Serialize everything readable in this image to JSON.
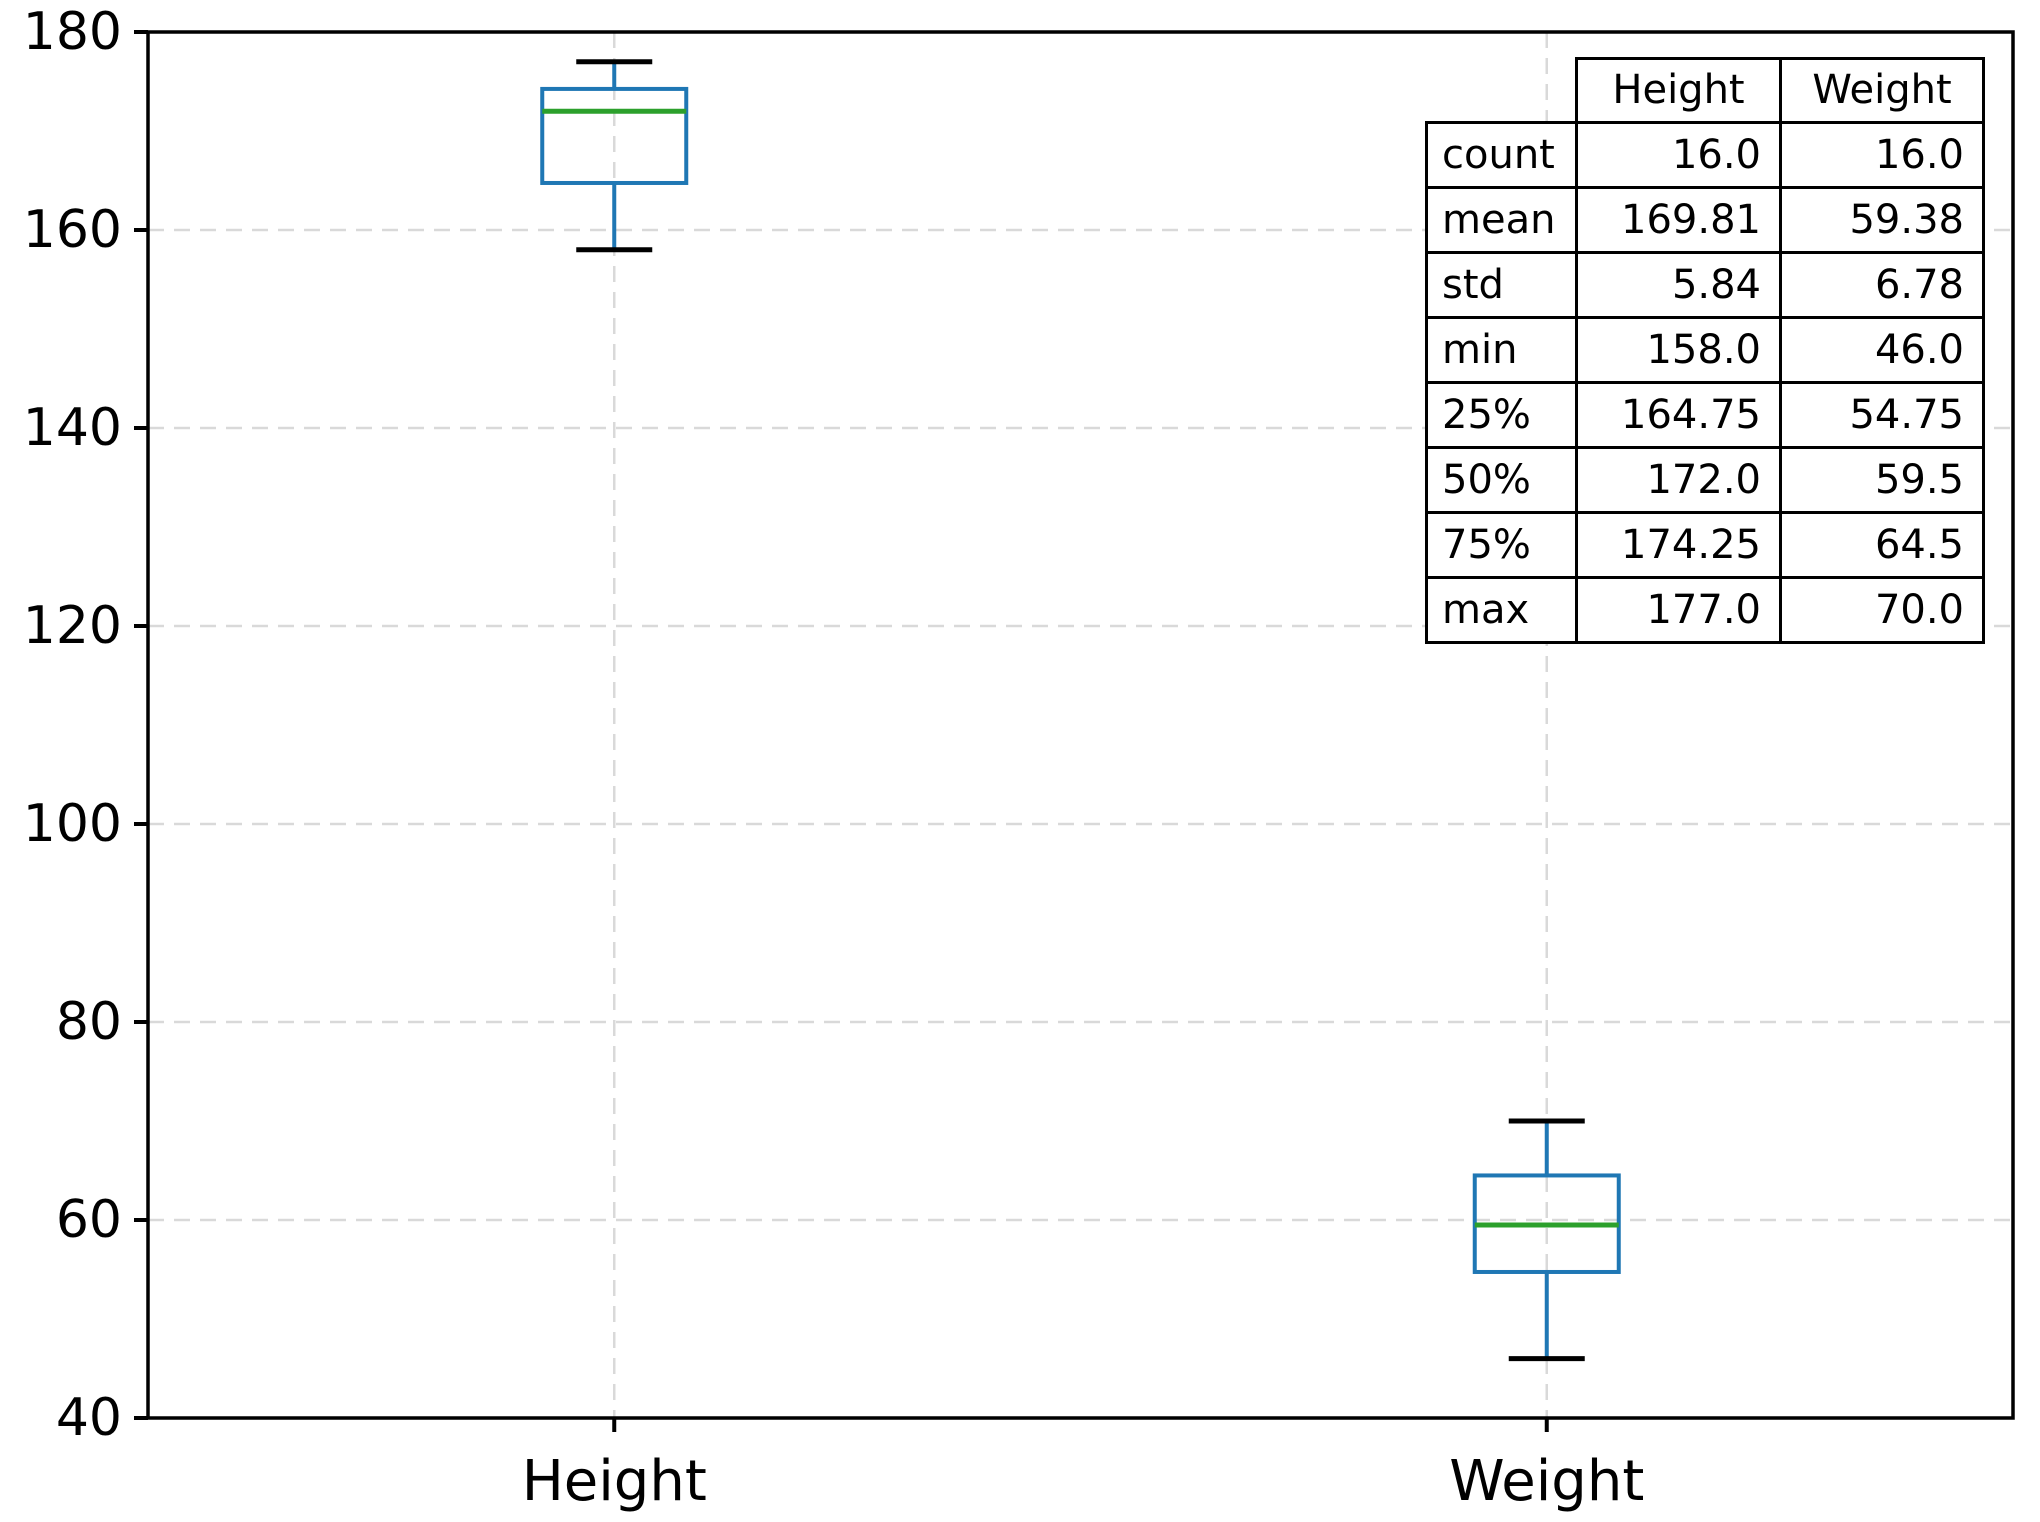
{
  "chart_data": {
    "type": "boxplot",
    "title": "",
    "xlabel": "",
    "ylabel": "",
    "categories": [
      "Height",
      "Weight"
    ],
    "series": [
      {
        "name": "Height",
        "min": 158.0,
        "q1": 164.75,
        "median": 172.0,
        "q3": 174.25,
        "max": 177.0
      },
      {
        "name": "Weight",
        "min": 46.0,
        "q1": 54.75,
        "median": 59.5,
        "q3": 64.5,
        "max": 70.0
      }
    ],
    "ylim": [
      40,
      180
    ],
    "yticks": [
      40,
      60,
      80,
      100,
      120,
      140,
      160,
      180
    ],
    "grid": "dashed-both-axes",
    "legend": "none",
    "colors": {
      "box": "#1f77b4",
      "whisker": "#1f77b4",
      "median": "#2ca02c",
      "cap": "#000000",
      "grid": "#d9d9d9",
      "spine": "#000000",
      "text": "#000000",
      "background": "#ffffff"
    }
  },
  "stats_table": {
    "columns": [
      "Height",
      "Weight"
    ],
    "rows": [
      {
        "label": "count",
        "values": [
          "16.0",
          "16.0"
        ]
      },
      {
        "label": "mean",
        "values": [
          "169.81",
          "59.38"
        ]
      },
      {
        "label": "std",
        "values": [
          "5.84",
          "6.78"
        ]
      },
      {
        "label": "min",
        "values": [
          "158.0",
          "46.0"
        ]
      },
      {
        "label": "25%",
        "values": [
          "164.75",
          "54.75"
        ]
      },
      {
        "label": "50%",
        "values": [
          "172.0",
          "59.5"
        ]
      },
      {
        "label": "75%",
        "values": [
          "174.25",
          "64.5"
        ]
      },
      {
        "label": "max",
        "values": [
          "177.0",
          "70.0"
        ]
      }
    ]
  }
}
